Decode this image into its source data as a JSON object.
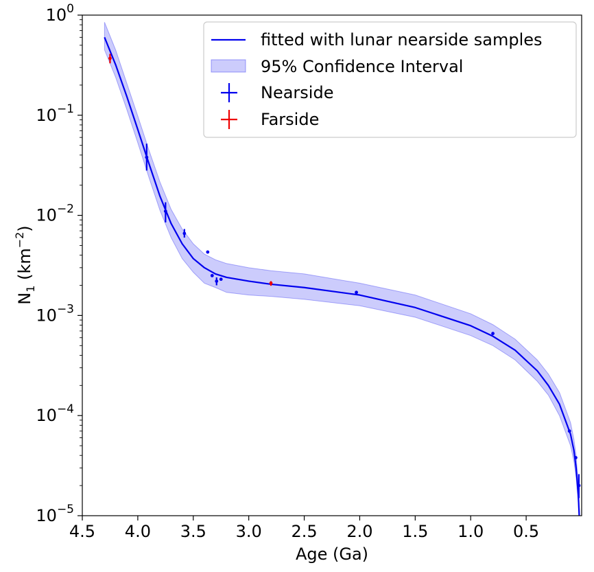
{
  "chart_data": {
    "type": "line",
    "title": "",
    "xlabel": "Age (Ga)",
    "ylabel": "N",
    "ylabel_sub": "1",
    "ylabel_unit_open": " (km",
    "ylabel_unit_exp": "−2",
    "ylabel_unit_close": ")",
    "x_reversed": true,
    "xlim": [
      4.5,
      0.0
    ],
    "ylim": [
      1e-05,
      1
    ],
    "yscale": "log",
    "grid": false,
    "legend_position": "top-right",
    "x_ticks": [
      4.5,
      4.0,
      3.5,
      3.0,
      2.5,
      2.0,
      1.5,
      1.0,
      0.5
    ],
    "x_tick_labels": [
      "4.5",
      "4.0",
      "3.5",
      "3.0",
      "2.5",
      "2.0",
      "1.5",
      "1.0",
      "0.5"
    ],
    "y_ticks": [
      {
        "value": 1,
        "base": "10",
        "exp": "0"
      },
      {
        "value": 0.1,
        "base": "10",
        "exp": "−1"
      },
      {
        "value": 0.01,
        "base": "10",
        "exp": "−2"
      },
      {
        "value": 0.001,
        "base": "10",
        "exp": "−3"
      },
      {
        "value": 0.0001,
        "base": "10",
        "exp": "−4"
      },
      {
        "value": 1e-05,
        "base": "10",
        "exp": "−5"
      }
    ],
    "fit_curve": {
      "name": "fitted with lunar nearside samples",
      "color": "#0000ee",
      "x": [
        4.3,
        4.2,
        4.1,
        4.0,
        3.9,
        3.8,
        3.7,
        3.6,
        3.5,
        3.4,
        3.3,
        3.2,
        3.0,
        2.8,
        2.5,
        2.0,
        1.5,
        1.0,
        0.8,
        0.6,
        0.4,
        0.3,
        0.2,
        0.1,
        0.07,
        0.05,
        0.03,
        0.02,
        0.01
      ],
      "y": [
        0.6,
        0.32,
        0.155,
        0.072,
        0.033,
        0.0155,
        0.0083,
        0.0052,
        0.0037,
        0.003,
        0.0026,
        0.0024,
        0.0022,
        0.00205,
        0.0019,
        0.0016,
        0.0012,
        0.00079,
        0.00062,
        0.00045,
        0.00028,
        0.0002,
        0.00013,
        6.5e-05,
        4.5e-05,
        3e-05,
        1.6e-05,
        9e-06,
        4e-06
      ]
    },
    "confidence_band": {
      "name": "95% Confidence Interval",
      "color": "#0000ee",
      "opacity": 0.2,
      "x": [
        4.3,
        4.2,
        4.1,
        4.0,
        3.9,
        3.8,
        3.7,
        3.6,
        3.5,
        3.4,
        3.3,
        3.2,
        3.0,
        2.8,
        2.5,
        2.0,
        1.5,
        1.0,
        0.8,
        0.6,
        0.4,
        0.3,
        0.2,
        0.1,
        0.07,
        0.05,
        0.03,
        0.02,
        0.01
      ],
      "lower": [
        0.45,
        0.24,
        0.115,
        0.053,
        0.024,
        0.0112,
        0.006,
        0.0037,
        0.0027,
        0.0021,
        0.0019,
        0.0017,
        0.0016,
        0.00155,
        0.00145,
        0.00125,
        0.00096,
        0.00063,
        0.0005,
        0.00036,
        0.00022,
        0.00016,
        0.0001,
        5e-05,
        3.5e-05,
        2.4e-05,
        1.3e-05,
        7.5e-06,
        3.5e-06
      ],
      "upper": [
        0.85,
        0.45,
        0.21,
        0.098,
        0.045,
        0.0215,
        0.0115,
        0.0073,
        0.0052,
        0.0041,
        0.0036,
        0.0033,
        0.003,
        0.0028,
        0.0026,
        0.0021,
        0.0016,
        0.00104,
        0.00081,
        0.00058,
        0.00036,
        0.00026,
        0.00017,
        8.5e-05,
        5.8e-05,
        4e-05,
        2e-05,
        1.1e-05,
        4.8e-06
      ]
    },
    "series": [
      {
        "name": "Nearside",
        "color": "#0000ee",
        "points": [
          {
            "x": 3.92,
            "y": 0.038,
            "ylo": 0.028,
            "yhi": 0.052
          },
          {
            "x": 3.75,
            "y": 0.011,
            "ylo": 0.0085,
            "yhi": 0.0135
          },
          {
            "x": 3.58,
            "y": 0.0066,
            "ylo": 0.006,
            "yhi": 0.0073
          },
          {
            "x": 3.37,
            "y": 0.0043
          },
          {
            "x": 3.33,
            "y": 0.0025
          },
          {
            "x": 3.29,
            "y": 0.0022,
            "ylo": 0.002,
            "yhi": 0.0024
          },
          {
            "x": 3.25,
            "y": 0.0023
          },
          {
            "x": 2.03,
            "y": 0.0017
          },
          {
            "x": 0.8,
            "y": 0.00066
          },
          {
            "x": 0.11,
            "y": 7e-05
          },
          {
            "x": 0.053,
            "y": 3.8e-05
          },
          {
            "x": 0.025,
            "y": 2e-05,
            "ylo": 1.5e-05,
            "yhi": 2.6e-05
          }
        ]
      },
      {
        "name": "Farside",
        "color": "#ee0000",
        "points": [
          {
            "x": 4.25,
            "y": 0.37,
            "ylo": 0.33,
            "yhi": 0.41
          },
          {
            "x": 2.8,
            "y": 0.0021,
            "ylo": 0.00198,
            "yhi": 0.0022
          }
        ]
      }
    ]
  }
}
